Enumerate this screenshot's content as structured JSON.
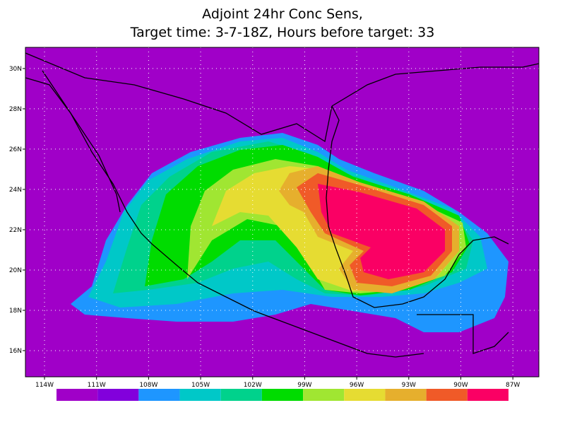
{
  "chart_data": {
    "type": "map",
    "title": "Adjoint 24hr Conc Sens,",
    "subtitle": "Target time: 3-7-18Z, Hours before target: 33",
    "xlim": [
      -115.1,
      -85.5
    ],
    "ylim": [
      14.7,
      31.05
    ],
    "xticks": [
      {
        "value": -114,
        "label": "114W"
      },
      {
        "value": -111,
        "label": "111W"
      },
      {
        "value": -108,
        "label": "108W"
      },
      {
        "value": -105,
        "label": "105W"
      },
      {
        "value": -102,
        "label": "102W"
      },
      {
        "value": -99,
        "label": "99W"
      },
      {
        "value": -96,
        "label": "96W"
      },
      {
        "value": -93,
        "label": "93W"
      },
      {
        "value": -90,
        "label": "90W"
      },
      {
        "value": -87,
        "label": "87W"
      }
    ],
    "yticks": [
      {
        "value": 16,
        "label": "16N"
      },
      {
        "value": 18,
        "label": "18N"
      },
      {
        "value": 20,
        "label": "20N"
      },
      {
        "value": 22,
        "label": "22N"
      },
      {
        "value": 24,
        "label": "24N"
      },
      {
        "value": 26,
        "label": "26N"
      },
      {
        "value": 28,
        "label": "28N"
      },
      {
        "value": 30,
        "label": "30N"
      }
    ],
    "grid": true,
    "colorbar": [
      "#a000c8",
      "#8200dc",
      "#1e96ff",
      "#00c8c8",
      "#00d28c",
      "#00dc00",
      "#a0e632",
      "#e6dc32",
      "#e6af2d",
      "#f05a28",
      "#fa0064"
    ]
  }
}
